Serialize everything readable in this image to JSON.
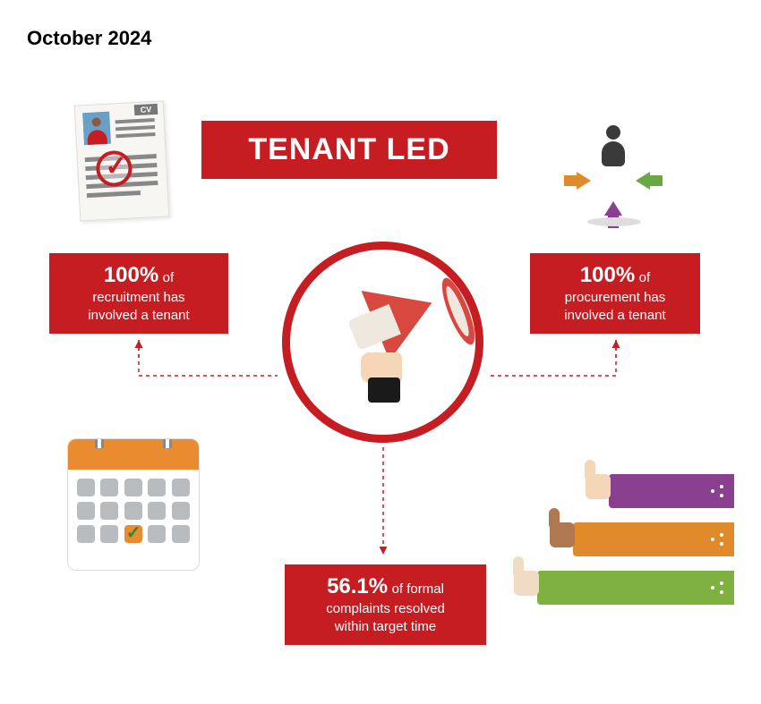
{
  "date": "October 2024",
  "title": "TENANT LED",
  "colors": {
    "primary": "#c61d23",
    "orange": "#e08a2c",
    "green": "#7fb142",
    "purple": "#8b3f8f",
    "dark": "#3a3a3a",
    "cal_orange": "#e98b2e",
    "grey": "#b9bcbe"
  },
  "stats": {
    "recruitment": {
      "value": "100%",
      "suffix": "of",
      "line2": "recruitment has",
      "line3": "involved a tenant"
    },
    "procurement": {
      "value": "100%",
      "suffix": "of",
      "line2": "procurement has",
      "line3": "involved a tenant"
    },
    "complaints": {
      "value": "56.1%",
      "suffix": "of formal",
      "line2": "complaints resolved",
      "line3": "within target time"
    }
  },
  "cv": {
    "tab": "CV"
  },
  "calendar": {
    "rows": 3,
    "cols": 5,
    "marked_index": 12
  }
}
